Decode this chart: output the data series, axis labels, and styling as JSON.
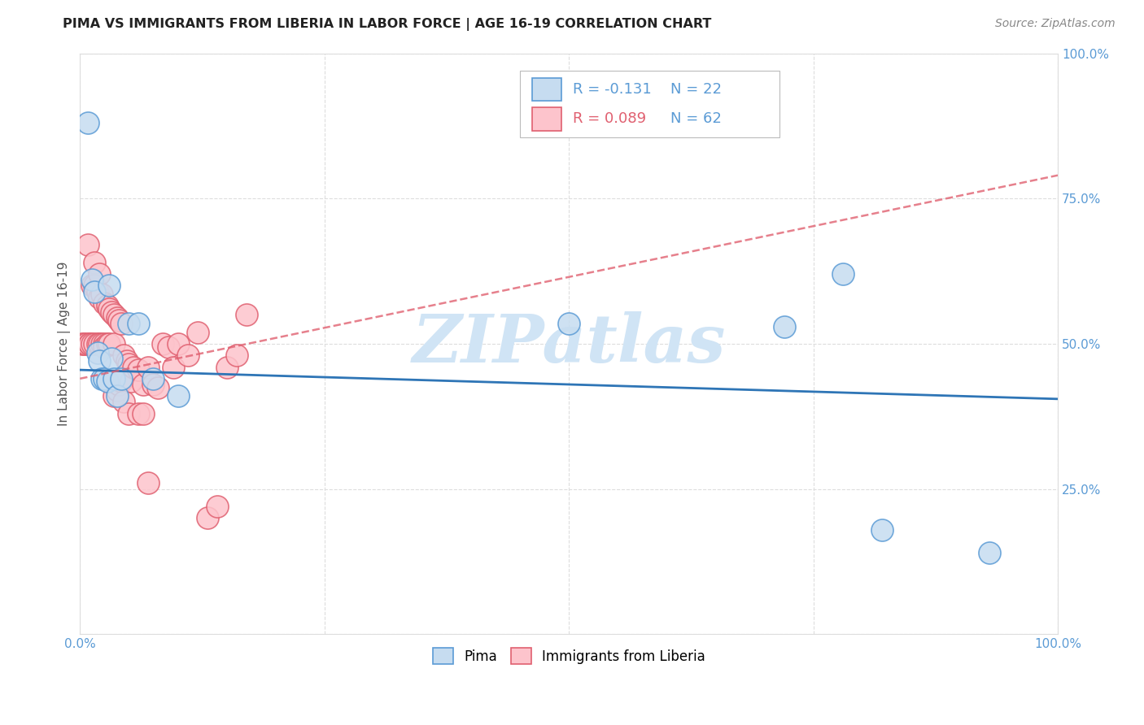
{
  "title": "PIMA VS IMMIGRANTS FROM LIBERIA IN LABOR FORCE | AGE 16-19 CORRELATION CHART",
  "source": "Source: ZipAtlas.com",
  "ylabel": "In Labor Force | Age 16-19",
  "xlim": [
    0.0,
    1.0
  ],
  "ylim": [
    0.0,
    1.0
  ],
  "pima_r": -0.131,
  "pima_n": 22,
  "liberia_r": 0.089,
  "liberia_n": 62,
  "pima_color_face": "#c6dcf0",
  "pima_color_edge": "#5b9bd5",
  "liberia_color_face": "#fdc4cc",
  "liberia_color_edge": "#e06070",
  "pima_line_color": "#2e75b6",
  "liberia_line_color": "#e06070",
  "tick_color": "#5b9bd5",
  "watermark": "ZIPatlas",
  "watermark_color": "#d0e4f5",
  "background_color": "#ffffff",
  "grid_color": "#dddddd",
  "pima_scatter_x": [
    0.008,
    0.012,
    0.015,
    0.018,
    0.02,
    0.022,
    0.025,
    0.028,
    0.03,
    0.032,
    0.035,
    0.038,
    0.042,
    0.05,
    0.06,
    0.075,
    0.1,
    0.5,
    0.72,
    0.78,
    0.82,
    0.93
  ],
  "pima_scatter_y": [
    0.88,
    0.61,
    0.59,
    0.485,
    0.47,
    0.44,
    0.44,
    0.435,
    0.6,
    0.475,
    0.44,
    0.41,
    0.44,
    0.535,
    0.535,
    0.44,
    0.41,
    0.535,
    0.53,
    0.62,
    0.18,
    0.14
  ],
  "liberia_scatter_x": [
    0.002,
    0.004,
    0.006,
    0.008,
    0.01,
    0.01,
    0.012,
    0.012,
    0.015,
    0.015,
    0.015,
    0.018,
    0.018,
    0.02,
    0.02,
    0.02,
    0.022,
    0.022,
    0.025,
    0.025,
    0.025,
    0.028,
    0.028,
    0.03,
    0.03,
    0.03,
    0.032,
    0.035,
    0.035,
    0.035,
    0.038,
    0.038,
    0.04,
    0.04,
    0.042,
    0.042,
    0.045,
    0.045,
    0.048,
    0.05,
    0.05,
    0.052,
    0.055,
    0.06,
    0.06,
    0.065,
    0.065,
    0.07,
    0.07,
    0.075,
    0.08,
    0.085,
    0.09,
    0.095,
    0.1,
    0.11,
    0.12,
    0.13,
    0.14,
    0.15,
    0.16,
    0.17
  ],
  "liberia_scatter_y": [
    0.5,
    0.5,
    0.5,
    0.67,
    0.5,
    0.5,
    0.6,
    0.5,
    0.64,
    0.6,
    0.5,
    0.59,
    0.5,
    0.62,
    0.58,
    0.5,
    0.585,
    0.5,
    0.57,
    0.5,
    0.495,
    0.565,
    0.5,
    0.56,
    0.5,
    0.435,
    0.555,
    0.55,
    0.5,
    0.41,
    0.545,
    0.42,
    0.54,
    0.43,
    0.535,
    0.435,
    0.48,
    0.4,
    0.47,
    0.465,
    0.38,
    0.435,
    0.46,
    0.455,
    0.38,
    0.43,
    0.38,
    0.46,
    0.26,
    0.43,
    0.425,
    0.5,
    0.495,
    0.46,
    0.5,
    0.48,
    0.52,
    0.2,
    0.22,
    0.46,
    0.48,
    0.55
  ],
  "pima_trendline_x": [
    0.0,
    1.0
  ],
  "pima_trendline_y": [
    0.455,
    0.405
  ],
  "liberia_trendline_x": [
    0.0,
    1.0
  ],
  "liberia_trendline_y": [
    0.44,
    0.79
  ]
}
